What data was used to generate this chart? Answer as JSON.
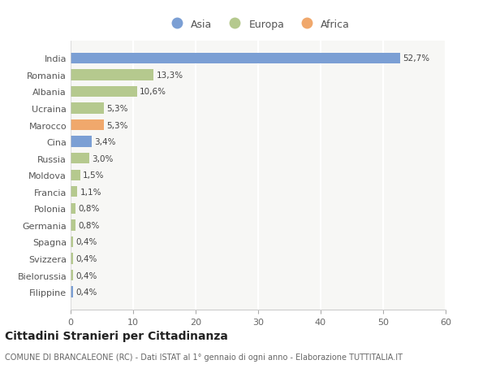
{
  "categories": [
    "India",
    "Romania",
    "Albania",
    "Ucraina",
    "Marocco",
    "Cina",
    "Russia",
    "Moldova",
    "Francia",
    "Polonia",
    "Germania",
    "Spagna",
    "Svizzera",
    "Bielorussia",
    "Filippine"
  ],
  "values": [
    52.7,
    13.3,
    10.6,
    5.3,
    5.3,
    3.4,
    3.0,
    1.5,
    1.1,
    0.8,
    0.8,
    0.4,
    0.4,
    0.4,
    0.4
  ],
  "labels": [
    "52,7%",
    "13,3%",
    "10,6%",
    "5,3%",
    "5,3%",
    "3,4%",
    "3,0%",
    "1,5%",
    "1,1%",
    "0,8%",
    "0,8%",
    "0,4%",
    "0,4%",
    "0,4%",
    "0,4%"
  ],
  "colors": [
    "#7b9fd4",
    "#b5c98e",
    "#b5c98e",
    "#b5c98e",
    "#f0a86c",
    "#7b9fd4",
    "#b5c98e",
    "#b5c98e",
    "#b5c98e",
    "#b5c98e",
    "#b5c98e",
    "#b5c98e",
    "#b5c98e",
    "#b5c98e",
    "#7b9fd4"
  ],
  "legend_labels": [
    "Asia",
    "Europa",
    "Africa"
  ],
  "legend_colors": [
    "#7b9fd4",
    "#b5c98e",
    "#f0a86c"
  ],
  "xlim": [
    0,
    60
  ],
  "xticks": [
    0,
    10,
    20,
    30,
    40,
    50,
    60
  ],
  "title": "Cittadini Stranieri per Cittadinanza",
  "subtitle": "COMUNE DI BRANCALEONE (RC) - Dati ISTAT al 1° gennaio di ogni anno - Elaborazione TUTTITALIA.IT",
  "chart_bg": "#f7f7f5",
  "top_bg": "#ffffff",
  "grid_color": "#ffffff"
}
